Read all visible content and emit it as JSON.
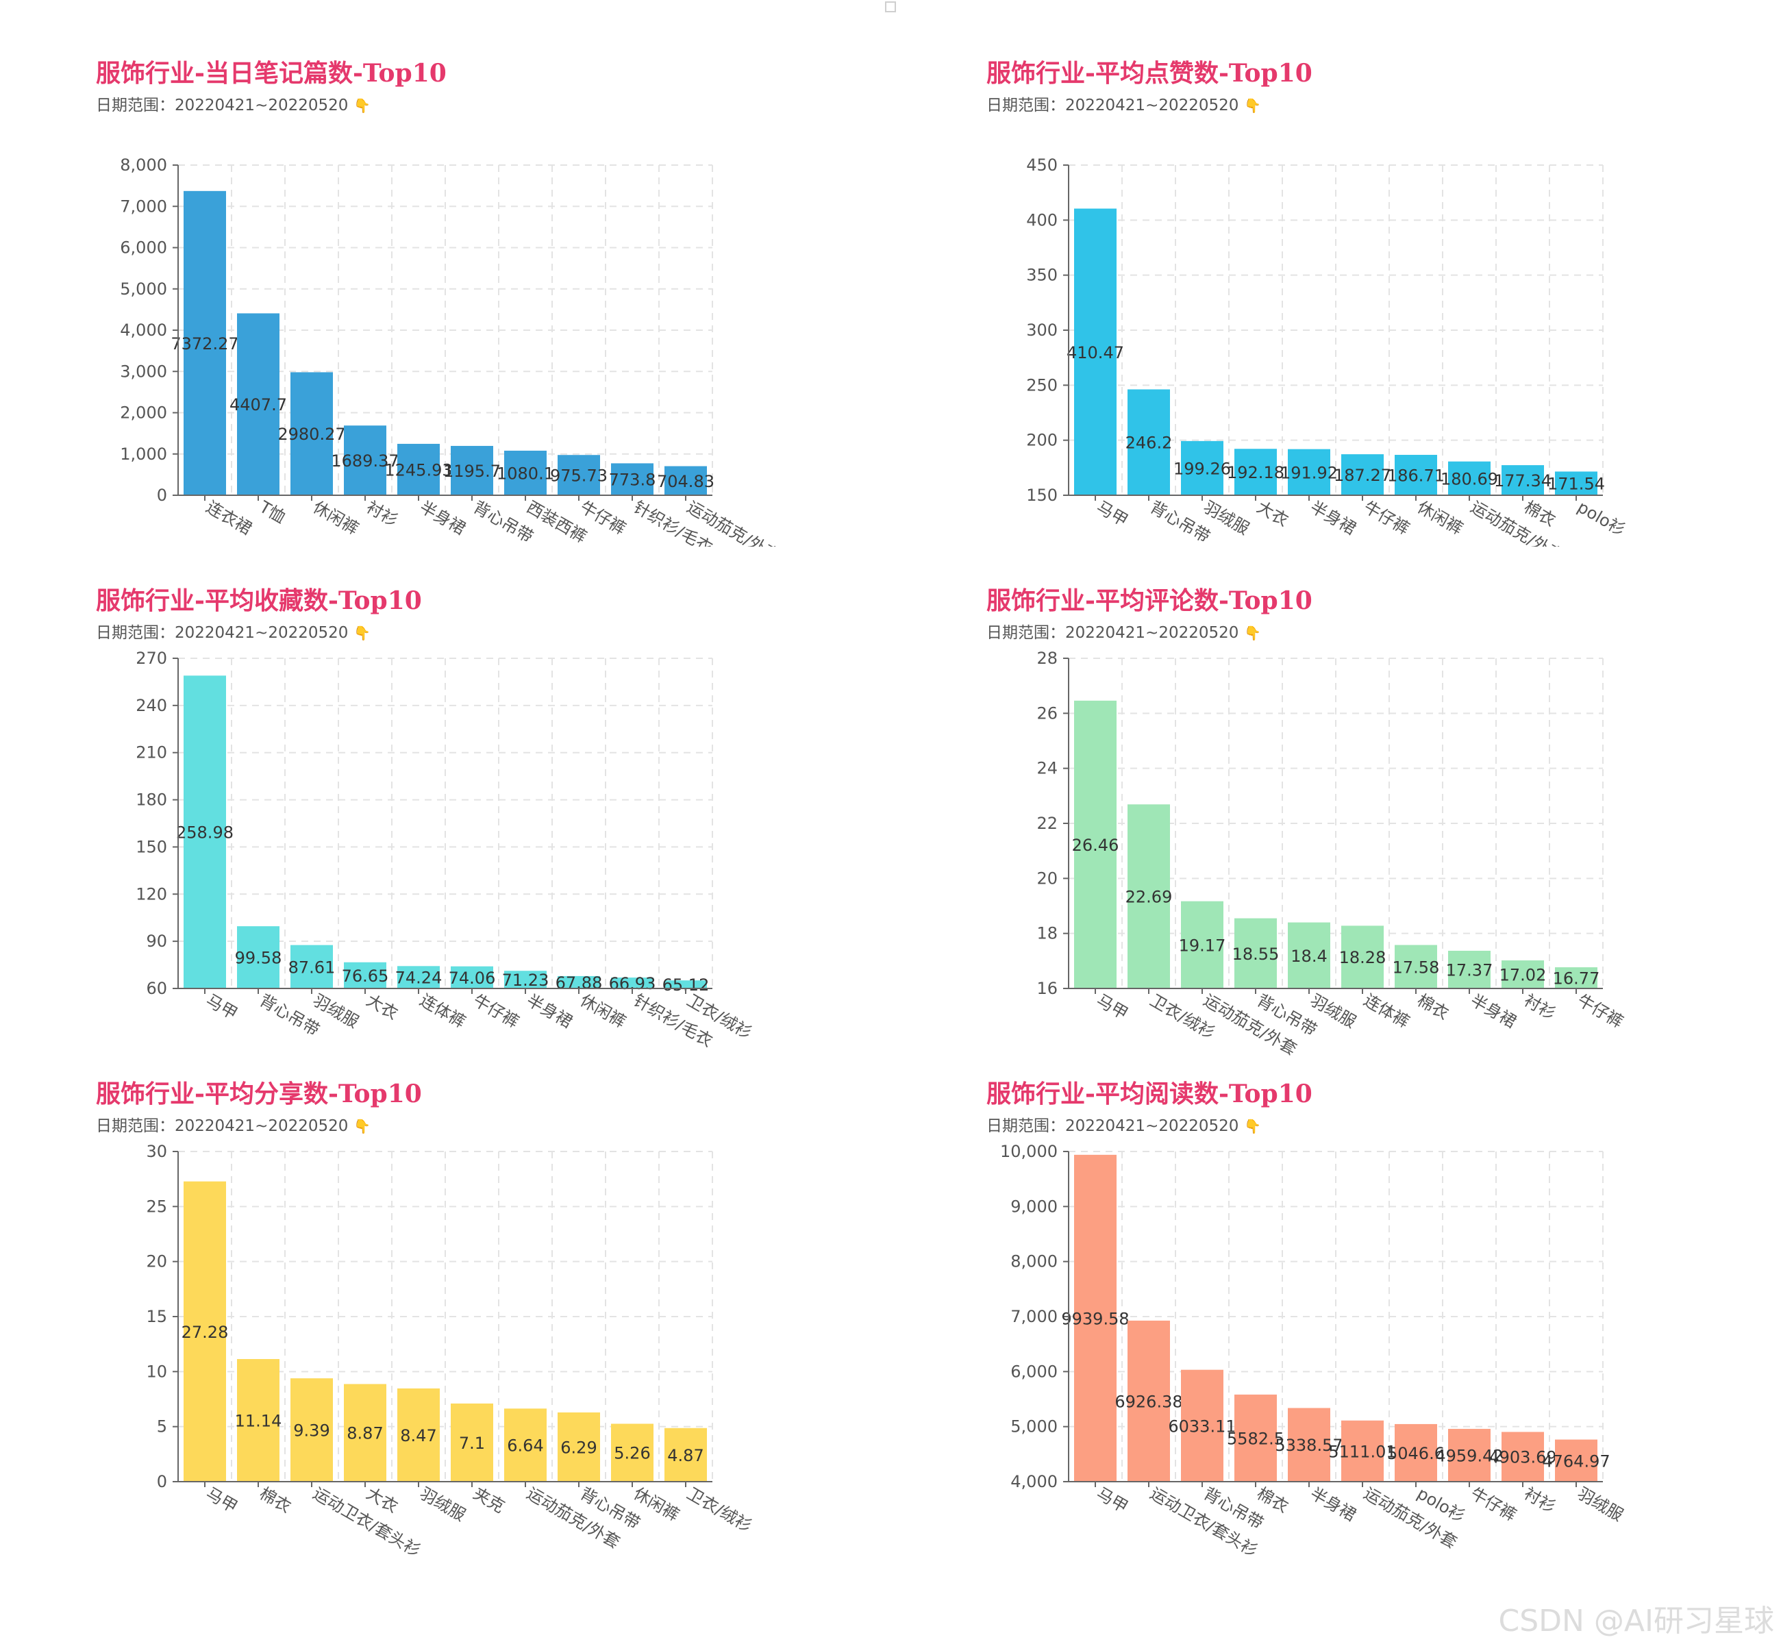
{
  "watermark": "CSDN @AI研习星球",
  "chart_data": [
    {
      "type": "bar",
      "title": "服饰行业-当日笔记篇数-Top10",
      "subtitle": "日期范围：20220421~20220520",
      "subtitle_icon": "👇",
      "categories": [
        "连衣裙",
        "T恤",
        "休闲裤",
        "衬衫",
        "半身裙",
        "背心吊带",
        "西装西裤",
        "牛仔裤",
        "针织衫/毛衣",
        "运动茄克/外套"
      ],
      "values": [
        7372.27,
        4407.7,
        2980.27,
        1689.37,
        1245.93,
        1195.7,
        1080.1,
        975.73,
        773.8,
        704.83
      ],
      "value_labels": [
        "7372.27",
        "4407.7",
        "2980.27",
        "1689.37",
        "1245.93",
        "1195.7",
        "1080.1",
        "975.73",
        "773.8",
        "704.83"
      ],
      "ylim": [
        0,
        8000
      ],
      "yticks": [
        0,
        1000,
        2000,
        3000,
        4000,
        5000,
        6000,
        7000,
        8000
      ],
      "ytick_labels": [
        "0",
        "1,000",
        "2,000",
        "3,000",
        "4,000",
        "5,000",
        "6,000",
        "7,000",
        "8,000"
      ],
      "color": "#3aa1d9",
      "grid": true
    },
    {
      "type": "bar",
      "title": "服饰行业-平均点赞数-Top10",
      "subtitle": "日期范围：20220421~20220520",
      "subtitle_icon": "👇",
      "categories": [
        "马甲",
        "背心吊带",
        "羽绒服",
        "大衣",
        "半身裙",
        "牛仔裤",
        "休闲裤",
        "运动茄克/外套",
        "棉衣",
        "polo衫"
      ],
      "values": [
        410.47,
        246.2,
        199.26,
        192.18,
        191.92,
        187.27,
        186.71,
        180.69,
        177.34,
        171.54
      ],
      "value_labels": [
        "410.47",
        "246.2",
        "199.26",
        "192.18",
        "191.92",
        "187.27",
        "186.71",
        "180.69",
        "177.34",
        "171.54"
      ],
      "ylim": [
        150,
        450
      ],
      "yticks": [
        150,
        200,
        250,
        300,
        350,
        400,
        450
      ],
      "ytick_labels": [
        "150",
        "200",
        "250",
        "300",
        "350",
        "400",
        "450"
      ],
      "color": "#30c3e8",
      "grid": true
    },
    {
      "type": "bar",
      "title": "服饰行业-平均收藏数-Top10",
      "subtitle": "日期范围：20220421~20220520",
      "subtitle_icon": "👇",
      "categories": [
        "马甲",
        "背心吊带",
        "羽绒服",
        "大衣",
        "连体裤",
        "牛仔裤",
        "半身裙",
        "休闲裤",
        "针织衫/毛衣",
        "卫衣/绒衫"
      ],
      "values": [
        258.98,
        99.58,
        87.61,
        76.65,
        74.24,
        74.06,
        71.23,
        67.88,
        66.93,
        65.12
      ],
      "value_labels": [
        "258.98",
        "99.58",
        "87.61",
        "76.65",
        "74.24",
        "74.06",
        "71.23",
        "67.88",
        "66.93",
        "65.12"
      ],
      "ylim": [
        60,
        270
      ],
      "yticks": [
        60,
        90,
        120,
        150,
        180,
        210,
        240,
        270
      ],
      "ytick_labels": [
        "60",
        "90",
        "120",
        "150",
        "180",
        "210",
        "240",
        "270"
      ],
      "color": "#62dfe0",
      "grid": true
    },
    {
      "type": "bar",
      "title": "服饰行业-平均评论数-Top10",
      "subtitle": "日期范围：20220421~20220520",
      "subtitle_icon": "👇",
      "categories": [
        "马甲",
        "卫衣/绒衫",
        "运动茄克/外套",
        "背心吊带",
        "羽绒服",
        "连体裤",
        "棉衣",
        "半身裙",
        "衬衫",
        "牛仔裤"
      ],
      "values": [
        26.46,
        22.69,
        19.17,
        18.55,
        18.4,
        18.28,
        17.58,
        17.37,
        17.02,
        16.77
      ],
      "value_labels": [
        "26.46",
        "22.69",
        "19.17",
        "18.55",
        "18.4",
        "18.28",
        "17.58",
        "17.37",
        "17.02",
        "16.77"
      ],
      "ylim": [
        16,
        28
      ],
      "yticks": [
        16,
        18,
        20,
        22,
        24,
        26,
        28
      ],
      "ytick_labels": [
        "16",
        "18",
        "20",
        "22",
        "24",
        "26",
        "28"
      ],
      "color": "#9fe6b6",
      "grid": true
    },
    {
      "type": "bar",
      "title": "服饰行业-平均分享数-Top10",
      "subtitle": "日期范围：20220421~20220520",
      "subtitle_icon": "👇",
      "categories": [
        "马甲",
        "棉衣",
        "运动卫衣/套头衫",
        "大衣",
        "羽绒服",
        "夹克",
        "运动茄克/外套",
        "背心吊带",
        "休闲裤",
        "卫衣/绒衫"
      ],
      "values": [
        27.28,
        11.14,
        9.39,
        8.87,
        8.47,
        7.1,
        6.64,
        6.29,
        5.26,
        4.87
      ],
      "value_labels": [
        "27.28",
        "11.14",
        "9.39",
        "8.87",
        "8.47",
        "7.1",
        "6.64",
        "6.29",
        "5.26",
        "4.87"
      ],
      "ylim": [
        0,
        30
      ],
      "yticks": [
        0,
        5,
        10,
        15,
        20,
        25,
        30
      ],
      "ytick_labels": [
        "0",
        "5",
        "10",
        "15",
        "20",
        "25",
        "30"
      ],
      "color": "#fdd95a",
      "grid": true
    },
    {
      "type": "bar",
      "title": "服饰行业-平均阅读数-Top10",
      "subtitle": "日期范围：20220421~20220520",
      "subtitle_icon": "👇",
      "categories": [
        "马甲",
        "运动卫衣/套头衫",
        "背心吊带",
        "棉衣",
        "半身裙",
        "运动茄克/外套",
        "polo衫",
        "牛仔裤",
        "衬衫",
        "羽绒服"
      ],
      "values": [
        9939.58,
        6926.38,
        6033.11,
        5582.5,
        5338.57,
        5111.01,
        5046.6,
        4959.42,
        4903.69,
        4764.97
      ],
      "value_labels": [
        "9939.58",
        "6926.38",
        "6033.11",
        "5582.5",
        "5338.57",
        "5111.01",
        "5046.6",
        "4959.42",
        "4903.69",
        "4764.97"
      ],
      "ylim": [
        4000,
        10000
      ],
      "yticks": [
        4000,
        5000,
        6000,
        7000,
        8000,
        9000,
        10000
      ],
      "ytick_labels": [
        "4,000",
        "5,000",
        "6,000",
        "7,000",
        "8,000",
        "9,000",
        "10,000"
      ],
      "color": "#fc9f82",
      "grid": true
    }
  ]
}
